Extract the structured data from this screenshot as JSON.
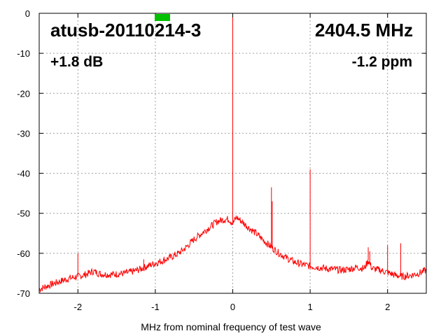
{
  "chart_data": {
    "type": "line",
    "title": "atusb-20110214-3",
    "frequency_label": "2404.5 MHz",
    "gain_label": "+1.8 dB",
    "drift_label": "-1.2 ppm",
    "xlabel": "MHz from nominal frequency of test wave",
    "ylabel": "",
    "xlim": [
      -2.5,
      2.5
    ],
    "ylim": [
      -70,
      0
    ],
    "x_ticks": [
      -2,
      -1,
      0,
      1,
      2
    ],
    "x_tick_labels": [
      "-2",
      "-1",
      "0",
      "1",
      "2"
    ],
    "y_ticks": [
      0,
      -10,
      -20,
      -30,
      -40,
      -50,
      -60,
      -70
    ],
    "y_tick_labels": [
      "0",
      "-10",
      "-20",
      "-30",
      "-40",
      "-50",
      "-60",
      "-70"
    ],
    "grid": true,
    "indicator_color": "#00c000",
    "series": [
      {
        "color": "#ff0000",
        "x": [
          -2.5,
          -2.4,
          -2.3,
          -2.2,
          -2.1,
          -2.0,
          -1.9,
          -1.8,
          -1.7,
          -1.6,
          -1.5,
          -1.4,
          -1.3,
          -1.2,
          -1.1,
          -1.0,
          -0.9,
          -0.8,
          -0.7,
          -0.6,
          -0.5,
          -0.4,
          -0.3,
          -0.2,
          -0.1,
          -0.05,
          0.0,
          0.05,
          0.1,
          0.2,
          0.3,
          0.4,
          0.5,
          0.6,
          0.7,
          0.8,
          0.9,
          1.0,
          1.1,
          1.2,
          1.3,
          1.4,
          1.5,
          1.6,
          1.7,
          1.75,
          1.8,
          1.9,
          2.0,
          2.1,
          2.2,
          2.3,
          2.4,
          2.5
        ],
        "y": [
          -69,
          -68.2,
          -67.5,
          -66.8,
          -66.2,
          -65.8,
          -65.3,
          -64.5,
          -65.2,
          -65.3,
          -65.2,
          -65.0,
          -64.6,
          -64.0,
          -63.2,
          -62.5,
          -61.8,
          -61.0,
          -60.0,
          -58.5,
          -56.5,
          -55.0,
          -53.5,
          -52.0,
          -51.5,
          -51.5,
          -52.5,
          -51.0,
          -51.8,
          -53.5,
          -55.0,
          -56.8,
          -58.5,
          -60.0,
          -61.2,
          -62.2,
          -62.8,
          -63.2,
          -63.5,
          -63.8,
          -64.0,
          -64.2,
          -64.0,
          -63.5,
          -63.8,
          -61.8,
          -63.8,
          -64.2,
          -64.8,
          -65.5,
          -65.8,
          -65.5,
          -65.0,
          -64.2
        ]
      }
    ],
    "spikes": [
      {
        "x": 0.0,
        "y": 0
      },
      {
        "x": 0.0,
        "y": -40
      },
      {
        "x": 0.5,
        "y": -43.5
      },
      {
        "x": 0.51,
        "y": -47
      },
      {
        "x": 1.0,
        "y": -39
      },
      {
        "x": -2.0,
        "y": -60
      },
      {
        "x": -1.15,
        "y": -61.5
      },
      {
        "x": 1.75,
        "y": -58.5
      },
      {
        "x": 1.77,
        "y": -59.5
      },
      {
        "x": 2.0,
        "y": -58
      },
      {
        "x": 2.17,
        "y": -57.5
      }
    ]
  }
}
